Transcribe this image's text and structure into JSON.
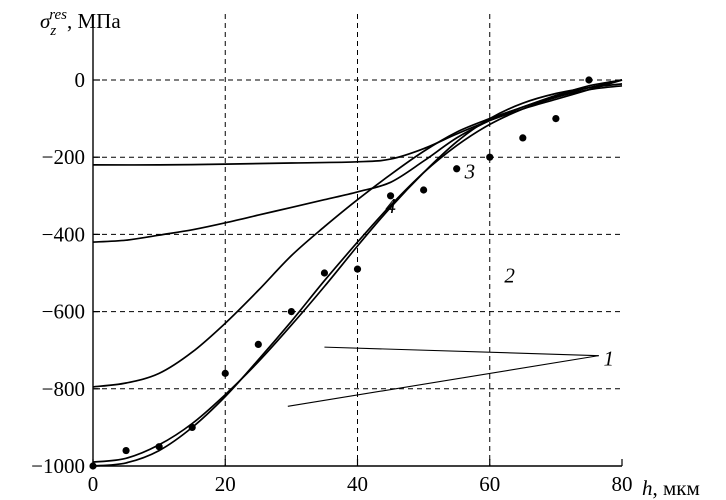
{
  "chart_data": {
    "type": "line",
    "ylabel": {
      "symbol": "σ",
      "sup": "res",
      "sub": "z",
      "unit": ", МПа"
    },
    "xlabel": {
      "symbol": "h",
      "unit": ", мкм"
    },
    "xlim": [
      0,
      80
    ],
    "ylim": [
      -1000,
      0
    ],
    "x_ticks": [
      "0",
      "20",
      "40",
      "60",
      "80"
    ],
    "y_ticks": [
      "0",
      "−200",
      "−400",
      "−600",
      "−800",
      "−1000"
    ],
    "y_tick_values": [
      0,
      -200,
      -400,
      -600,
      -800,
      -1000
    ],
    "x_tick_values": [
      0,
      20,
      40,
      60,
      80
    ],
    "grid": "dashed",
    "series": [
      {
        "name": "1",
        "x": [
          0,
          5,
          10,
          15,
          20,
          25,
          30,
          35,
          40,
          45,
          50,
          55,
          60,
          65,
          70,
          75,
          80
        ],
        "values": [
          -990,
          -980,
          -945,
          -890,
          -815,
          -730,
          -635,
          -535,
          -430,
          -330,
          -240,
          -160,
          -100,
          -60,
          -35,
          -20,
          -10
        ]
      },
      {
        "name": "1",
        "x": [
          0,
          5,
          10,
          15,
          20,
          25,
          30,
          35,
          40,
          45,
          50,
          55,
          60,
          65,
          70,
          75,
          80
        ],
        "values": [
          -1000,
          -992,
          -960,
          -900,
          -820,
          -725,
          -625,
          -520,
          -420,
          -325,
          -240,
          -170,
          -115,
          -75,
          -45,
          -25,
          -15
        ]
      },
      {
        "name": "2",
        "x": [
          0,
          5,
          10,
          15,
          20,
          25,
          30,
          35,
          40,
          45,
          50,
          55,
          60,
          65,
          70,
          75,
          80
        ],
        "values": [
          -795,
          -785,
          -760,
          -705,
          -630,
          -545,
          -455,
          -380,
          -310,
          -245,
          -185,
          -135,
          -100,
          -70,
          -40,
          -15,
          0
        ]
      },
      {
        "name": "3",
        "x": [
          0,
          10,
          20,
          30,
          40,
          45,
          50,
          55,
          60,
          65,
          70,
          75,
          80
        ],
        "values": [
          -220,
          -220,
          -218,
          -215,
          -212,
          -205,
          -178,
          -140,
          -105,
          -75,
          -50,
          -25,
          0
        ]
      },
      {
        "name": "4",
        "x": [
          0,
          5,
          10,
          15,
          20,
          25,
          30,
          35,
          40,
          45,
          50,
          55,
          60,
          65,
          70,
          75,
          80
        ],
        "values": [
          -420,
          -415,
          -402,
          -388,
          -370,
          -350,
          -330,
          -310,
          -290,
          -265,
          -210,
          -150,
          -105,
          -70,
          -42,
          -20,
          0
        ]
      }
    ],
    "points": {
      "x": [
        0,
        5,
        10,
        15,
        20,
        25,
        30,
        35,
        40,
        45,
        50,
        55,
        60,
        65,
        70,
        75
      ],
      "values": [
        -1000,
        -960,
        -950,
        -900,
        -760,
        -685,
        -600,
        -500,
        -490,
        -300,
        -285,
        -230,
        -200,
        -150,
        -100,
        0
      ]
    },
    "labels": [
      {
        "text": "1",
        "x": 78,
        "y": -740
      },
      {
        "text": "2",
        "x": 63,
        "y": -525
      },
      {
        "text": "3",
        "x": 57,
        "y": -255
      },
      {
        "text": "4",
        "x": 45,
        "y": -345
      }
    ]
  }
}
